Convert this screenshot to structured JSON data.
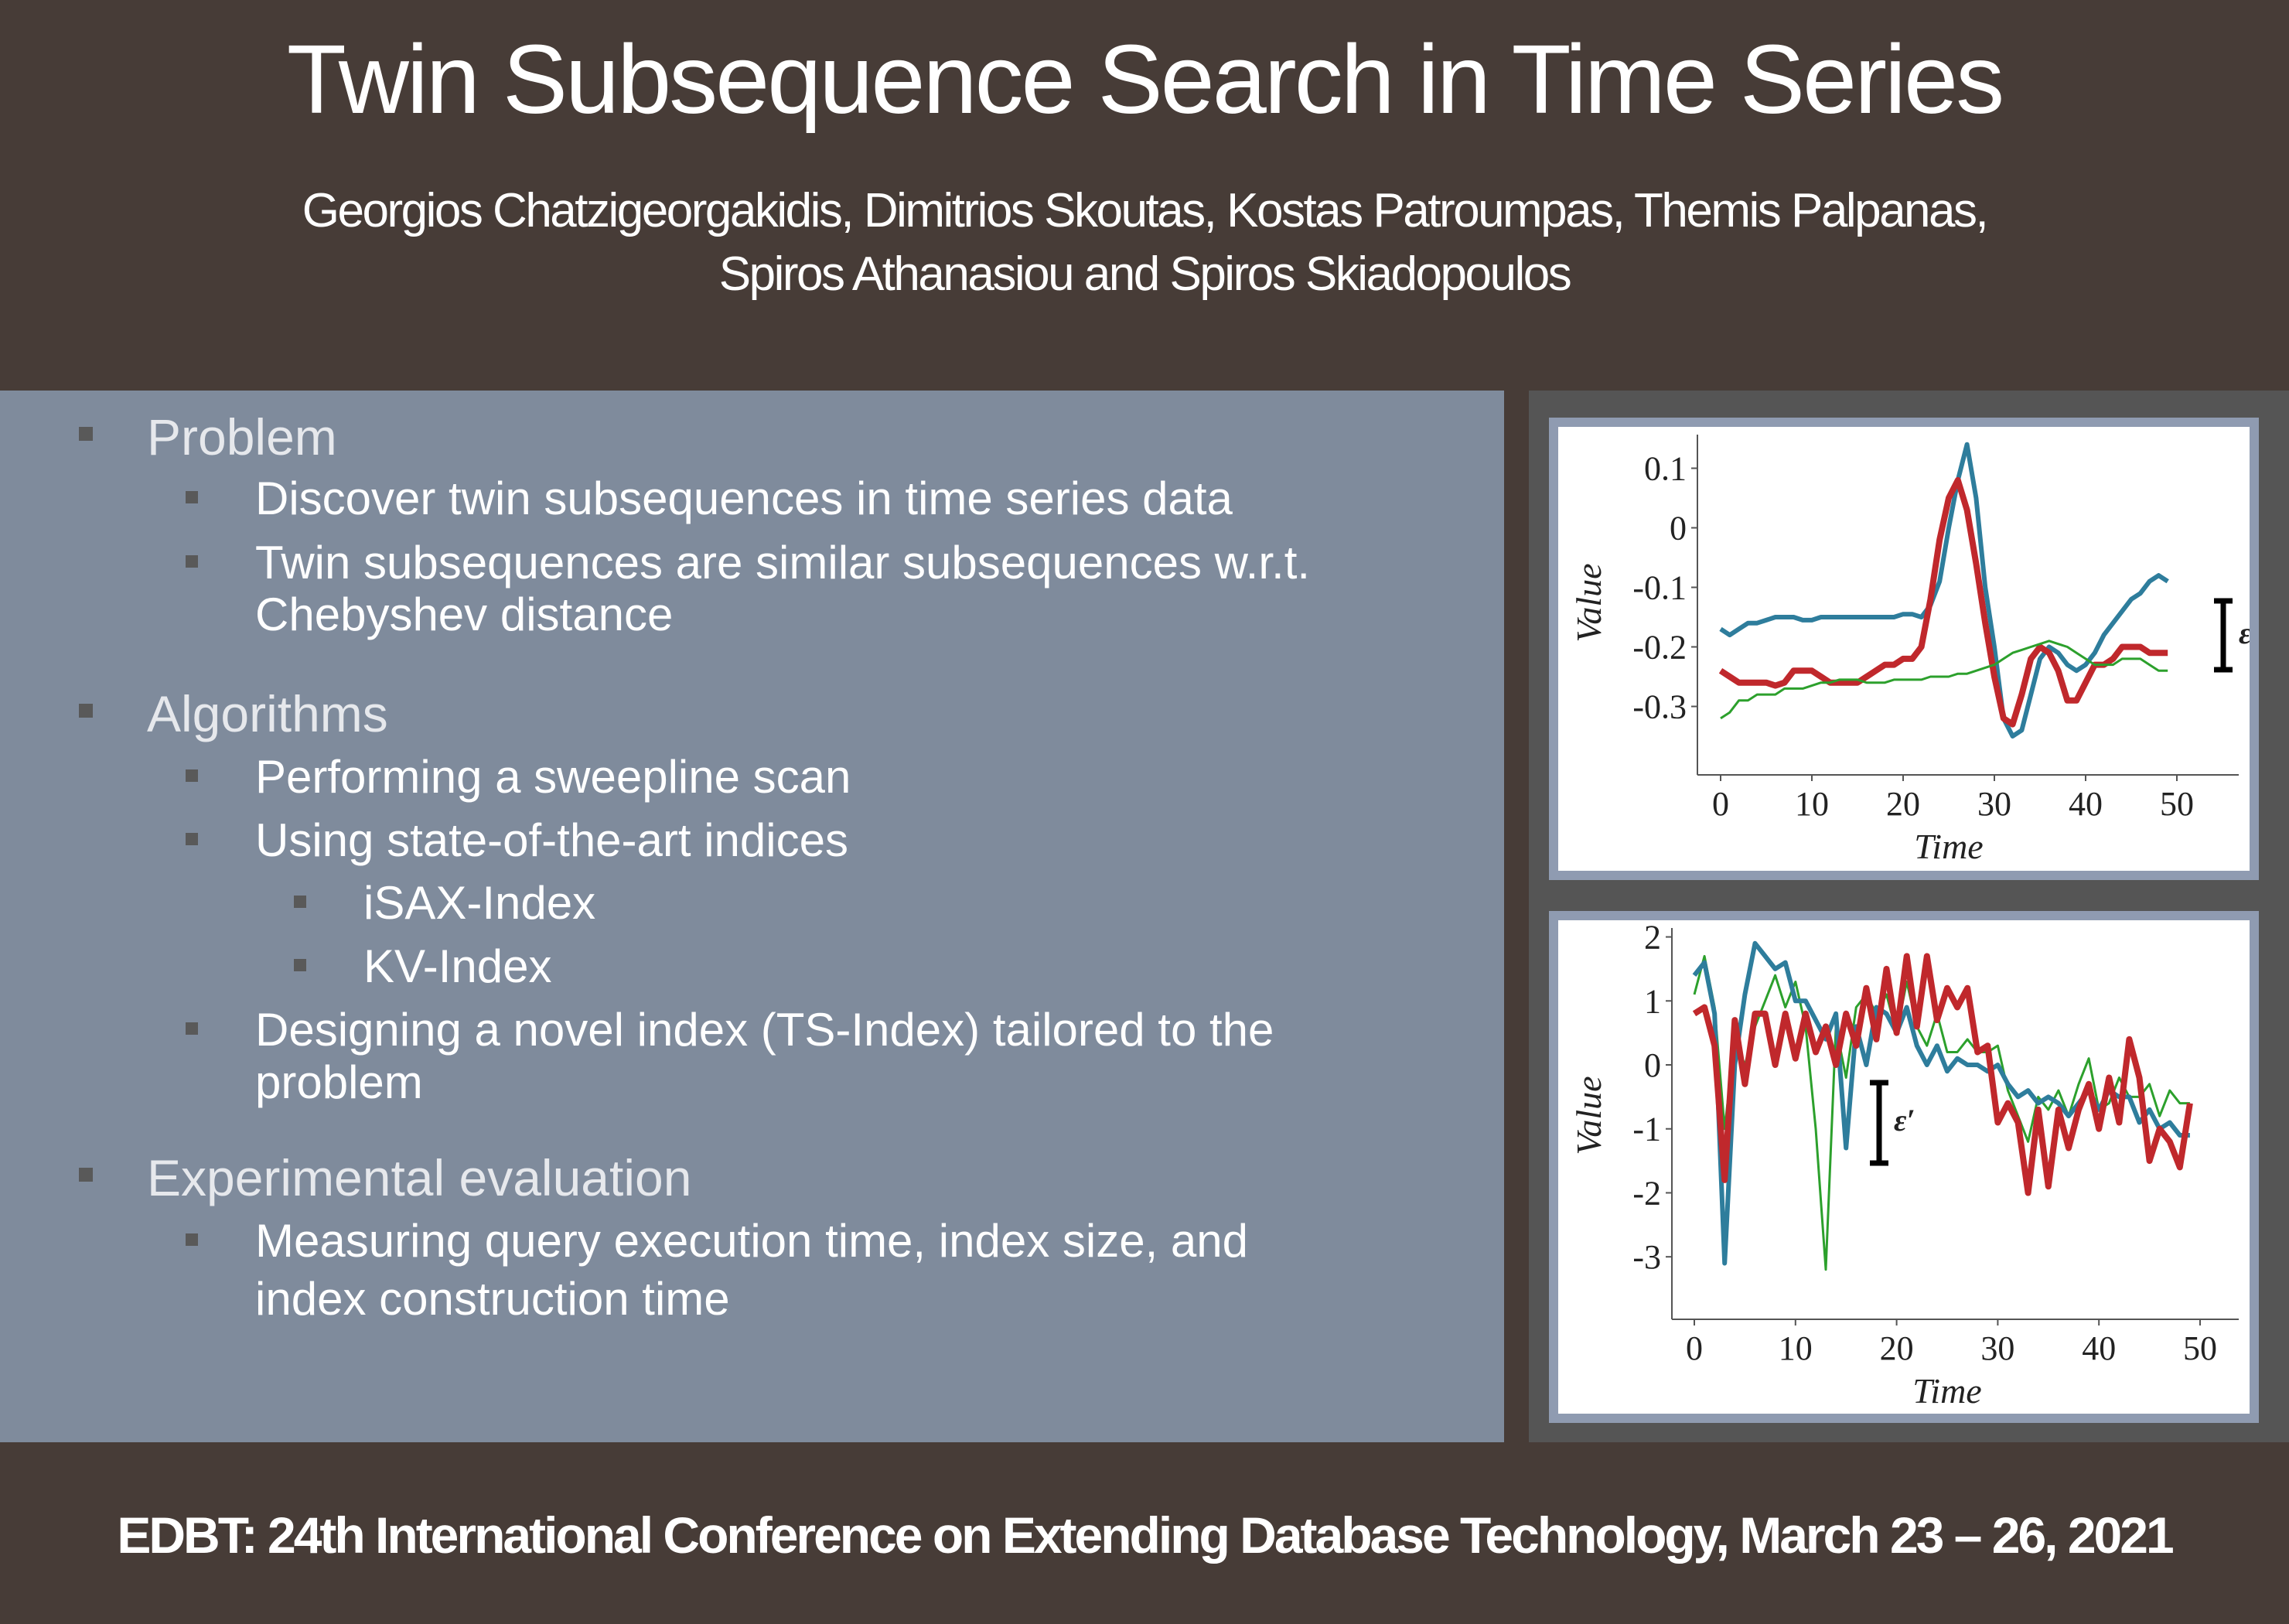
{
  "header": {
    "title": "Twin Subsequence Search in Time Series",
    "authors_line1": "Georgios Chatzigeorgakidis, Dimitrios Skoutas, Kostas Patroumpas, Themis Palpanas,",
    "authors_line2": "Spiros Athanasiou and Spiros Skiadopoulos"
  },
  "content": {
    "sections": [
      {
        "heading": "Problem",
        "items": [
          {
            "text": "Discover twin subsequences in time series data"
          },
          {
            "text": "Twin subsequences are similar subsequences w.r.t.",
            "cont": "Chebyshev distance"
          }
        ]
      },
      {
        "heading": "Algorithms",
        "items": [
          {
            "text": "Performing a sweepline scan"
          },
          {
            "text": "Using state-of-the-art indices",
            "sub": [
              "iSAX-Index",
              "KV-Index"
            ]
          },
          {
            "text": "Designing a novel index (TS-Index) tailored to the",
            "cont": "problem"
          }
        ]
      },
      {
        "heading": "Experimental evaluation",
        "items": [
          {
            "text": "Measuring query execution time, index size, and",
            "cont": "index construction time"
          }
        ]
      }
    ]
  },
  "footer": {
    "text": "EDBT: 24th International Conference on Extending Database Technology, March 23 – 26, 2021"
  },
  "colors": {
    "header_bg": "#473c37",
    "panel_bg": "#7f8b9c",
    "red_series": "#c0282c",
    "blue_series": "#2e7d9c",
    "green_series": "#2ca02c"
  },
  "chart_data": [
    {
      "type": "line",
      "xlabel": "Time",
      "ylabel": "Value",
      "xticks": [
        "0",
        "10",
        "20",
        "30",
        "40",
        "50"
      ],
      "yticks": [
        "0.1",
        "0",
        "-0.1",
        "-0.2",
        "-0.3"
      ],
      "xlim": [
        0,
        50
      ],
      "ylim": [
        -0.35,
        0.15
      ],
      "annotation": "ε′",
      "series": [
        {
          "color": "#2e7d9c",
          "x": [
            0,
            1,
            2,
            3,
            4,
            5,
            6,
            7,
            8,
            9,
            10,
            11,
            12,
            13,
            14,
            15,
            16,
            17,
            18,
            19,
            20,
            21,
            22,
            23,
            24,
            25,
            26,
            27,
            28,
            29,
            30,
            31,
            32,
            33,
            34,
            35,
            36,
            37,
            38,
            39,
            40,
            41,
            42,
            43,
            44,
            45,
            46,
            47,
            48,
            49
          ],
          "y": [
            -0.17,
            -0.18,
            -0.17,
            -0.16,
            -0.16,
            -0.155,
            -0.15,
            -0.15,
            -0.15,
            -0.155,
            -0.155,
            -0.15,
            -0.15,
            -0.15,
            -0.15,
            -0.15,
            -0.15,
            -0.15,
            -0.15,
            -0.15,
            -0.145,
            -0.145,
            -0.15,
            -0.13,
            -0.09,
            0.0,
            0.08,
            0.14,
            0.05,
            -0.1,
            -0.2,
            -0.32,
            -0.35,
            -0.34,
            -0.28,
            -0.22,
            -0.2,
            -0.21,
            -0.23,
            -0.24,
            -0.23,
            -0.21,
            -0.18,
            -0.16,
            -0.14,
            -0.12,
            -0.11,
            -0.09,
            -0.08,
            -0.09
          ]
        },
        {
          "color": "#c0282c",
          "x": [
            0,
            1,
            2,
            3,
            4,
            5,
            6,
            7,
            8,
            9,
            10,
            11,
            12,
            13,
            14,
            15,
            16,
            17,
            18,
            19,
            20,
            21,
            22,
            23,
            24,
            25,
            26,
            27,
            28,
            29,
            30,
            31,
            32,
            33,
            34,
            35,
            36,
            37,
            38,
            39,
            40,
            41,
            42,
            43,
            44,
            45,
            46,
            47,
            48,
            49
          ],
          "y": [
            -0.24,
            -0.25,
            -0.26,
            -0.26,
            -0.26,
            -0.26,
            -0.265,
            -0.26,
            -0.24,
            -0.24,
            -0.24,
            -0.25,
            -0.26,
            -0.26,
            -0.26,
            -0.26,
            -0.25,
            -0.24,
            -0.23,
            -0.23,
            -0.22,
            -0.22,
            -0.2,
            -0.12,
            -0.02,
            0.05,
            0.08,
            0.03,
            -0.06,
            -0.16,
            -0.25,
            -0.32,
            -0.33,
            -0.28,
            -0.22,
            -0.2,
            -0.21,
            -0.24,
            -0.29,
            -0.29,
            -0.26,
            -0.23,
            -0.23,
            -0.22,
            -0.2,
            -0.2,
            -0.2,
            -0.21,
            -0.21,
            -0.21
          ]
        },
        {
          "color": "#2ca02c",
          "x": [
            0,
            1,
            2,
            3,
            4,
            5,
            6,
            7,
            8,
            9,
            10,
            11,
            12,
            13,
            14,
            15,
            16,
            17,
            18,
            19,
            20,
            21,
            22,
            23,
            24,
            25,
            26,
            27,
            28,
            29,
            30,
            31,
            32,
            33,
            34,
            35,
            36,
            37,
            38,
            39,
            40,
            41,
            42,
            43,
            44,
            45,
            46,
            47,
            48,
            49
          ],
          "y": [
            -0.32,
            -0.31,
            -0.29,
            -0.29,
            -0.28,
            -0.28,
            -0.28,
            -0.27,
            -0.27,
            -0.27,
            -0.265,
            -0.26,
            -0.26,
            -0.255,
            -0.255,
            -0.255,
            -0.26,
            -0.26,
            -0.26,
            -0.255,
            -0.255,
            -0.255,
            -0.255,
            -0.25,
            -0.25,
            -0.25,
            -0.245,
            -0.245,
            -0.24,
            -0.235,
            -0.23,
            -0.22,
            -0.21,
            -0.205,
            -0.2,
            -0.195,
            -0.19,
            -0.195,
            -0.2,
            -0.21,
            -0.22,
            -0.23,
            -0.23,
            -0.23,
            -0.22,
            -0.22,
            -0.22,
            -0.23,
            -0.24,
            -0.24
          ]
        }
      ]
    },
    {
      "type": "line",
      "xlabel": "Time",
      "ylabel": "Value",
      "xticks": [
        "0",
        "10",
        "20",
        "30",
        "40",
        "50"
      ],
      "yticks": [
        "2",
        "1",
        "0",
        "-1",
        "-2",
        "-3"
      ],
      "xlim": [
        0,
        50
      ],
      "ylim": [
        -3.3,
        2.2
      ],
      "annotation": "ε′",
      "series": [
        {
          "color": "#2ca02c",
          "x": [
            0,
            1,
            2,
            3,
            4,
            5,
            6,
            7,
            8,
            9,
            10,
            11,
            12,
            13,
            14,
            15,
            16,
            17,
            18,
            19,
            20,
            21,
            22,
            23,
            24,
            25,
            26,
            27,
            28,
            29,
            30,
            31,
            32,
            33,
            34,
            35,
            36,
            37,
            38,
            39,
            40,
            41,
            42,
            43,
            44,
            45,
            46,
            47,
            48,
            49
          ],
          "y": [
            1.1,
            1.7,
            0.9,
            -1.0,
            0.4,
            0.0,
            0.6,
            1.0,
            1.4,
            0.9,
            1.3,
            0.6,
            -1.0,
            -3.2,
            0.6,
            -0.2,
            0.9,
            1.1,
            0.8,
            1.1,
            0.5,
            1.3,
            0.6,
            0.3,
            0.8,
            0.2,
            0.2,
            0.4,
            0.2,
            0.2,
            0.3,
            -0.4,
            -0.8,
            -1.2,
            -0.5,
            -0.7,
            -0.4,
            -0.8,
            -0.3,
            0.1,
            -0.7,
            -0.6,
            -0.2,
            -0.5,
            -0.5,
            -0.3,
            -0.8,
            -0.4,
            -0.6,
            -0.6
          ]
        },
        {
          "color": "#2e7d9c",
          "x": [
            0,
            1,
            2,
            3,
            4,
            5,
            6,
            7,
            8,
            9,
            10,
            11,
            12,
            13,
            14,
            15,
            16,
            17,
            18,
            19,
            20,
            21,
            22,
            23,
            24,
            25,
            26,
            27,
            28,
            29,
            30,
            31,
            32,
            33,
            34,
            35,
            36,
            37,
            38,
            39,
            40,
            41,
            42,
            43,
            44,
            45,
            46,
            47,
            48,
            49
          ],
          "y": [
            1.4,
            1.6,
            0.8,
            -3.1,
            0.0,
            1.1,
            1.9,
            1.7,
            1.5,
            1.6,
            1.0,
            1.0,
            0.7,
            0.4,
            0.8,
            -1.3,
            0.6,
            0.0,
            0.9,
            0.8,
            0.5,
            0.9,
            0.3,
            0.0,
            0.3,
            -0.1,
            0.1,
            0.0,
            0.0,
            -0.1,
            0.0,
            -0.3,
            -0.5,
            -0.4,
            -0.6,
            -0.5,
            -0.6,
            -0.8,
            -0.6,
            -0.4,
            -0.7,
            -0.4,
            -0.5,
            -0.5,
            -0.9,
            -0.7,
            -1.0,
            -0.9,
            -1.1,
            -1.1
          ]
        },
        {
          "color": "#c0282c",
          "x": [
            0,
            1,
            2,
            3,
            4,
            5,
            6,
            7,
            8,
            9,
            10,
            11,
            12,
            13,
            14,
            15,
            16,
            17,
            18,
            19,
            20,
            21,
            22,
            23,
            24,
            25,
            26,
            27,
            28,
            29,
            30,
            31,
            32,
            33,
            34,
            35,
            36,
            37,
            38,
            39,
            40,
            41,
            42,
            43,
            44,
            45,
            46,
            47,
            48,
            49
          ],
          "y": [
            0.8,
            0.9,
            0.3,
            -1.8,
            0.7,
            -0.3,
            0.8,
            0.8,
            0.0,
            0.8,
            0.1,
            0.8,
            0.2,
            0.6,
            0.0,
            0.8,
            0.3,
            1.2,
            0.4,
            1.5,
            0.5,
            1.7,
            0.6,
            1.7,
            0.7,
            1.2,
            0.9,
            1.2,
            0.2,
            0.3,
            -0.9,
            -0.6,
            -0.9,
            -2.0,
            -0.7,
            -1.9,
            -0.7,
            -1.3,
            -0.7,
            -0.3,
            -1.0,
            -0.2,
            -0.9,
            0.4,
            -0.2,
            -1.5,
            -1.0,
            -1.2,
            -1.6,
            -0.6
          ]
        }
      ]
    }
  ]
}
